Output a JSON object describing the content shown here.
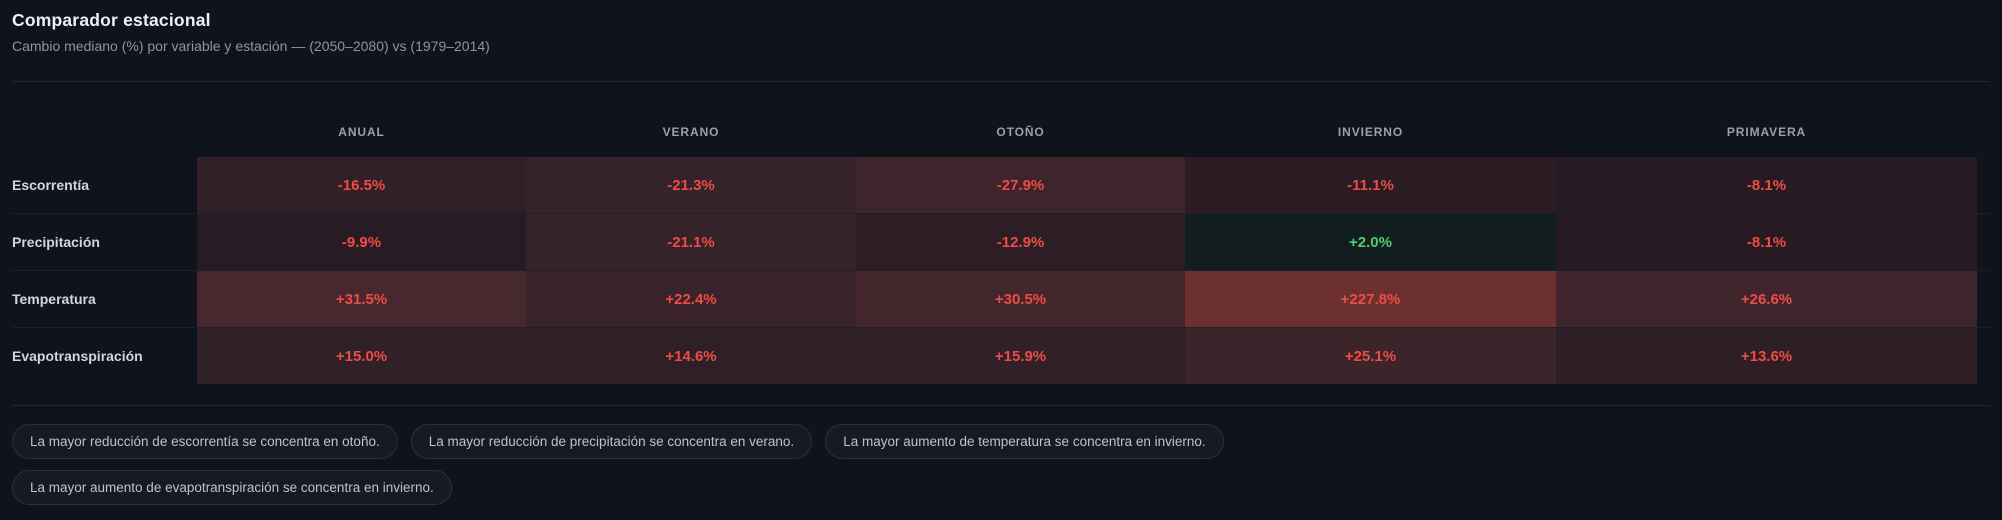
{
  "panel": {
    "title": "Comparador estacional",
    "subtitle": "Cambio mediano (%) por variable y estación — (2050–2080) vs (1979–2014)"
  },
  "heatmap": {
    "columns": [
      "ANUAL",
      "VERANO",
      "OTOÑO",
      "INVIERNO",
      "PRIMAVERA"
    ],
    "rows": [
      {
        "label": "Escorrentía",
        "cells": [
          {
            "text": "-16.5%",
            "tone": "red",
            "bg": "#322028"
          },
          {
            "text": "-21.3%",
            "tone": "red",
            "bg": "#362229"
          },
          {
            "text": "-27.9%",
            "tone": "red",
            "bg": "#3d252b"
          },
          {
            "text": "-11.1%",
            "tone": "red",
            "bg": "#2b1c24"
          },
          {
            "text": "-8.1%",
            "tone": "red",
            "bg": "#271a22"
          }
        ]
      },
      {
        "label": "Precipitación",
        "cells": [
          {
            "text": "-9.9%",
            "tone": "red",
            "bg": "#291b23"
          },
          {
            "text": "-21.1%",
            "tone": "red",
            "bg": "#362229"
          },
          {
            "text": "-12.9%",
            "tone": "red",
            "bg": "#2d1e25"
          },
          {
            "text": "+2.0%",
            "tone": "green",
            "bg": "#121d1f"
          },
          {
            "text": "-8.1%",
            "tone": "red",
            "bg": "#271a22"
          }
        ]
      },
      {
        "label": "Temperatura",
        "cells": [
          {
            "text": "+31.5%",
            "tone": "red",
            "bg": "#46282e"
          },
          {
            "text": "+22.4%",
            "tone": "red",
            "bg": "#38232a"
          },
          {
            "text": "+30.5%",
            "tone": "red",
            "bg": "#44272d"
          },
          {
            "text": "+227.8%",
            "tone": "red",
            "bg": "#6d3031"
          },
          {
            "text": "+26.6%",
            "tone": "red",
            "bg": "#40252c"
          }
        ]
      },
      {
        "label": "Evapotranspiración",
        "cells": [
          {
            "text": "+15.0%",
            "tone": "red",
            "bg": "#302027"
          },
          {
            "text": "+14.6%",
            "tone": "red",
            "bg": "#2f1f27"
          },
          {
            "text": "+15.9%",
            "tone": "red",
            "bg": "#312028"
          },
          {
            "text": "+25.1%",
            "tone": "red",
            "bg": "#3c242b"
          },
          {
            "text": "+13.6%",
            "tone": "red",
            "bg": "#2e1e26"
          }
        ]
      }
    ]
  },
  "insights": [
    "La mayor reducción de escorrentía se concentra en otoño.",
    "La mayor reducción de precipitación se concentra en verano.",
    "La mayor aumento de temperatura se concentra en invierno.",
    "La mayor aumento de evapotranspiración se concentra en invierno."
  ],
  "colors": {
    "background": "#0f141c",
    "value_negative_red": "#f04b45",
    "value_positive_green": "#3fd36d",
    "max_cell_background": "#6d3031"
  },
  "chart_data": {
    "type": "heatmap",
    "title": "Comparador estacional",
    "subtitle": "Cambio mediano (%) por variable y estación — (2050–2080) vs (1979–2014)",
    "unit": "%",
    "columns": [
      "ANUAL",
      "VERANO",
      "OTOÑO",
      "INVIERNO",
      "PRIMAVERA"
    ],
    "rows": [
      "Escorrentía",
      "Precipitación",
      "Temperatura",
      "Evapotranspiración"
    ],
    "values": [
      [
        -16.5,
        -21.3,
        -27.9,
        -11.1,
        -8.1
      ],
      [
        -9.9,
        -21.1,
        -12.9,
        2.0,
        -8.1
      ],
      [
        31.5,
        22.4,
        30.5,
        227.8,
        26.6
      ],
      [
        15.0,
        14.6,
        15.9,
        25.1,
        13.6
      ]
    ],
    "color_encoding": "red intensity scales with magnitude of change; green used for positive precipitation change"
  }
}
